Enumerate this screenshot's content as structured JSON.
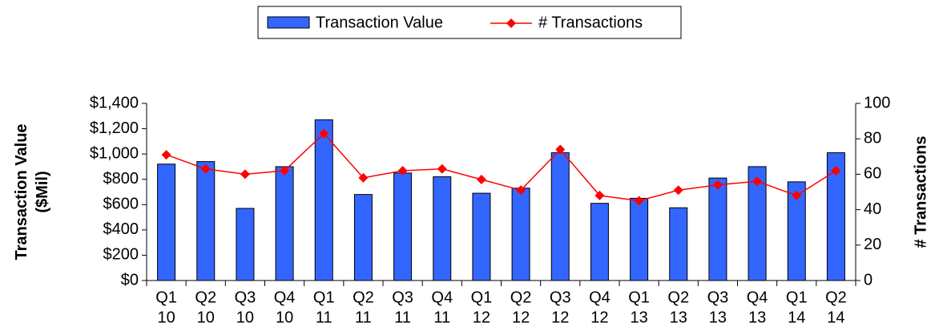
{
  "chart_data": {
    "type": "bar_line",
    "categories": [
      [
        "Q1",
        "10"
      ],
      [
        "Q2",
        "10"
      ],
      [
        "Q3",
        "10"
      ],
      [
        "Q4",
        "10"
      ],
      [
        "Q1",
        "11"
      ],
      [
        "Q2",
        "11"
      ],
      [
        "Q3",
        "11"
      ],
      [
        "Q4",
        "11"
      ],
      [
        "Q1",
        "12"
      ],
      [
        "Q2",
        "12"
      ],
      [
        "Q3",
        "12"
      ],
      [
        "Q4",
        "12"
      ],
      [
        "Q1",
        "13"
      ],
      [
        "Q2",
        "13"
      ],
      [
        "Q3",
        "13"
      ],
      [
        "Q4",
        "13"
      ],
      [
        "Q1",
        "14"
      ],
      [
        "Q2",
        "14"
      ]
    ],
    "series": [
      {
        "name": "Transaction Value",
        "color": "#3366ff",
        "type": "bar",
        "values": [
          920,
          940,
          570,
          900,
          1270,
          680,
          850,
          820,
          690,
          730,
          1010,
          610,
          650,
          575,
          810,
          900,
          780,
          1010
        ]
      },
      {
        "name": "# Transactions",
        "color": "#ff0000",
        "type": "line",
        "axis": "y2",
        "values": [
          71,
          63,
          60,
          62,
          83,
          58,
          62,
          63,
          57,
          51,
          74,
          48,
          45,
          51,
          54,
          56,
          48,
          62
        ]
      }
    ],
    "y_label": "Transaction Value ($Mil)",
    "y2_label": "# Transactions",
    "ylim": [
      0,
      1400
    ],
    "yticks": [
      {
        "value": 0,
        "label": "$0"
      },
      {
        "value": 200,
        "label": "$200"
      },
      {
        "value": 400,
        "label": "$400"
      },
      {
        "value": 600,
        "label": "$600"
      },
      {
        "value": 800,
        "label": "$800"
      },
      {
        "value": 1000,
        "label": "$1,000"
      },
      {
        "value": 1200,
        "label": "$1,200"
      },
      {
        "value": 1400,
        "label": "$1,400"
      }
    ],
    "y2lim": [
      0,
      100
    ],
    "y2ticks": [
      0,
      20,
      40,
      60,
      80,
      100
    ]
  }
}
